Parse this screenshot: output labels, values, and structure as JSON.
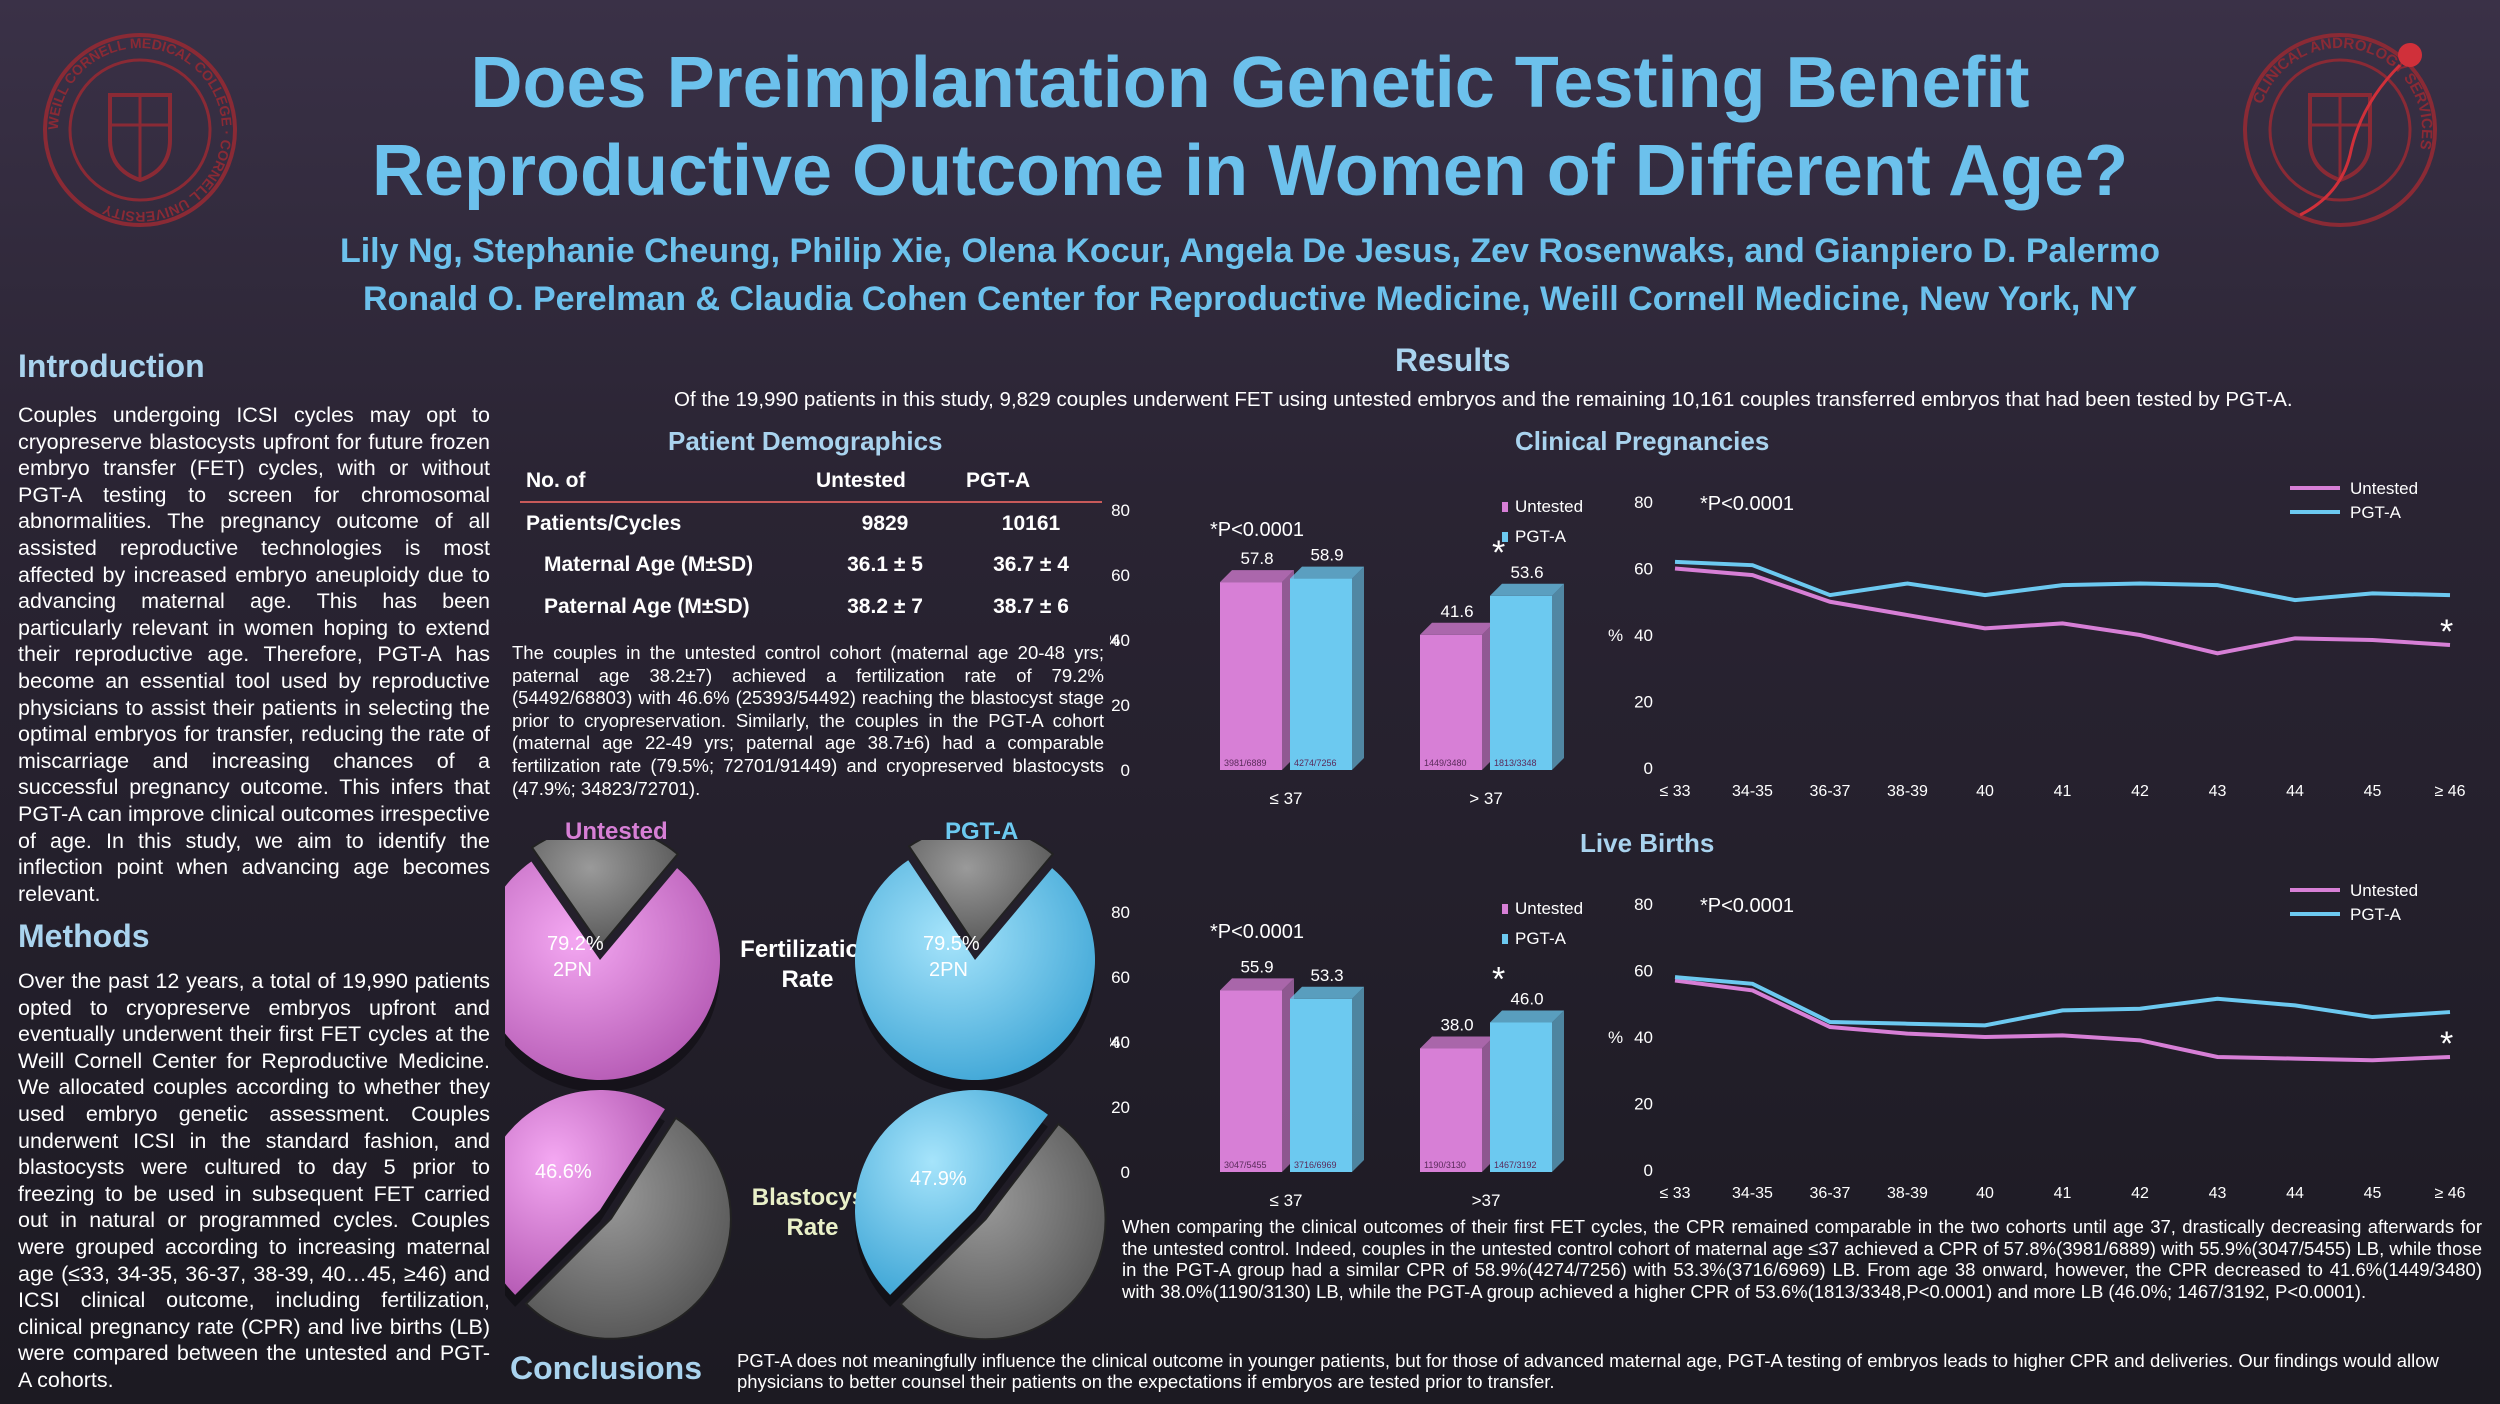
{
  "header": {
    "title_line1": "Does Preimplantation Genetic Testing Benefit",
    "title_line2": "Reproductive Outcome in Women of Different Age?",
    "authors": "Lily Ng, Stephanie Cheung, Philip Xie, Olena Kocur, Angela De Jesus, Zev Rosenwaks, and Gianpiero D. Palermo",
    "affiliation": "Ronald O. Perelman & Claudia Cohen Center for Reproductive Medicine, Weill Cornell Medicine, New York, NY",
    "left_logo_text": "WEILL CORNELL MEDICAL COLLEGE · CORNELL UNIVERSITY",
    "right_logo_text": "CLINICAL ANDROLOGY SERVICES"
  },
  "introduction": {
    "heading": "Introduction",
    "text": "Couples undergoing ICSI cycles may opt to cryopreserve blastocysts upfront for future frozen embryo transfer (FET) cycles, with or without PGT-A testing to screen for chromosomal abnormalities. The pregnancy outcome of all assisted reproductive technologies is most affected by increased embryo aneuploidy due to advancing maternal age. This has been particularly relevant in women hoping to extend their reproductive age. Therefore, PGT-A has become an essential tool used by reproductive physicians to assist their patients in selecting the optimal embryos for transfer, reducing the rate of miscarriage and increasing chances of a successful pregnancy outcome. This infers that PGT-A can improve clinical outcomes irrespective of age. In this study, we aim to identify the inflection point when advancing age becomes relevant."
  },
  "methods": {
    "heading": "Methods",
    "text": "Over the past 12 years, a total of 19,990 patients opted to cryopreserve embryos upfront and eventually underwent their first FET cycles at the Weill Cornell Center for Reproductive Medicine. We allocated couples according to whether they used embryo genetic assessment. Couples underwent ICSI in the standard fashion, and blastocysts were cultured to day 5 prior to freezing to be used in subsequent FET carried out in natural or programmed cycles. Couples were grouped according to increasing maternal age (≤33, 34-35, 36-37, 38-39, 40…45, ≥46) and ICSI clinical outcome, including fertilization, clinical pregnancy rate (CPR) and live births (LB) were compared between the untested and PGT-A cohorts."
  },
  "results": {
    "heading": "Results",
    "intro": "Of the 19,990 patients in this study, 9,829 couples underwent FET using untested embryos and the remaining 10,161 couples transferred embryos that had been tested by PGT-A.",
    "demographics_heading": "Patient Demographics",
    "table": {
      "headers": [
        "No. of",
        "Untested",
        "PGT-A"
      ],
      "rows": [
        [
          "Patients/Cycles",
          "9829",
          "10161"
        ],
        [
          "Maternal Age (M±SD)",
          "36.1 ± 5",
          "36.7 ± 4"
        ],
        [
          "Paternal Age (M±SD)",
          "38.2 ± 7",
          "38.7 ± 6"
        ]
      ]
    },
    "demo_text": "The couples in the untested control cohort (maternal age 20-48 yrs; paternal age 38.2±7) achieved a fertilization rate of 79.2% (54492/68803) with 46.6% (25393/54492) reaching the blastocyst stage prior to cryopreservation. Similarly, the couples in the PGT-A cohort (maternal age 22-49 yrs; paternal age 38.7±6) had a comparable fertilization rate (79.5%; 72701/91449) and cryopreserved blastocysts (47.9%; 34823/72701).",
    "pies": {
      "col_untested": "Untested",
      "col_pgta": "PGT-A",
      "fert_label": "Fertilization Rate",
      "blast_label": "Blastocyst Rate",
      "fert_untested_label": "79.2% 2PN",
      "fert_pgta_label": "79.5% 2PN",
      "blast_untested_label": "46.6%",
      "blast_pgta_label": "47.9%"
    },
    "clinical_heading": "Clinical Pregnancies",
    "live_heading": "Live Births",
    "outcome_text": "When comparing the clinical outcomes of their first FET cycles, the CPR remained comparable in the two cohorts until age 37, drastically decreasing afterwards for the untested control. Indeed, couples in the untested control cohort of maternal age ≤37 achieved a CPR of 57.8%(3981/6889) with 55.9%(3047/5455) LB, while those in the PGT-A group had a similar CPR of 58.9%(4274/7256) with 53.3%(3716/6969) LB. From age 38 onward, however, the CPR decreased to 41.6%(1449/3480) with 38.0%(1190/3130) LB, while the PGT-A group achieved a higher CPR of 53.6%(1813/3348,P<0.0001) and more LB (46.0%; 1467/3192, P<0.0001)."
  },
  "conclusions": {
    "heading": "Conclusions",
    "text": "PGT-A does not meaningfully influence the clinical outcome in younger patients, but for those of advanced maternal age, PGT-A testing of embryos leads to higher CPR and deliveries. Our findings would allow physicians to better counsel their patients on the expectations if embryos are tested prior to transfer."
  },
  "colors": {
    "untested": "#d77fd6",
    "pgta": "#6cc9f0",
    "title": "#6cc1ec",
    "heading": "#a9d3ee"
  },
  "chart_data": [
    {
      "type": "bar",
      "id": "cpr_bar",
      "title": "Clinical Pregnancies",
      "annotation": "*P<0.0001",
      "categories": [
        "≤ 37",
        "> 37"
      ],
      "ylabel": "%",
      "ylim": [
        0,
        80
      ],
      "yticks": [
        "0",
        "20",
        "40",
        "60",
        "80"
      ],
      "series": [
        {
          "name": "Untested",
          "values": [
            57.8,
            41.6
          ],
          "labels": [
            "57.8",
            "41.6"
          ],
          "counts": [
            "3981/6889",
            "1449/3480"
          ]
        },
        {
          "name": "PGT-A",
          "values": [
            58.9,
            53.6
          ],
          "labels": [
            "58.9",
            "53.6"
          ],
          "counts": [
            "4274/7256",
            "1813/3348"
          ]
        }
      ],
      "star": "*"
    },
    {
      "type": "line",
      "id": "cpr_line",
      "title": "Clinical Pregnancies",
      "annotation": "*P<0.0001",
      "categories": [
        "≤ 33",
        "34-35",
        "36-37",
        "38-39",
        "40",
        "41",
        "42",
        "43",
        "44",
        "45",
        "≥ 46"
      ],
      "ylabel": "%",
      "ylim": [
        0,
        80
      ],
      "yticks": [
        "0",
        "20",
        "40",
        "60",
        "80"
      ],
      "series": [
        {
          "name": "Untested",
          "values": [
            60,
            58,
            50,
            46,
            42,
            43.5,
            40,
            34.5,
            39,
            38.5,
            37
          ]
        },
        {
          "name": "PGT-A",
          "values": [
            62,
            61,
            52,
            55.5,
            52,
            55,
            55.5,
            55,
            50.5,
            52.5,
            52
          ]
        }
      ],
      "star": "*"
    },
    {
      "type": "bar",
      "id": "lb_bar",
      "title": "Live Births",
      "annotation": "*P<0.0001",
      "categories": [
        "≤ 37",
        ">37"
      ],
      "ylabel": "%",
      "ylim": [
        0,
        80
      ],
      "yticks": [
        "0",
        "20",
        "40",
        "60",
        "80"
      ],
      "series": [
        {
          "name": "Untested",
          "values": [
            55.9,
            38.0
          ],
          "labels": [
            "55.9",
            "38.0"
          ],
          "counts": [
            "3047/5455",
            "1190/3130"
          ]
        },
        {
          "name": "PGT-A",
          "values": [
            53.3,
            46.0
          ],
          "labels": [
            "53.3",
            "46.0"
          ],
          "counts": [
            "3716/6969",
            "1467/3192"
          ]
        }
      ],
      "star": "*"
    },
    {
      "type": "line",
      "id": "lb_line",
      "title": "Live Births",
      "annotation": "*P<0.0001",
      "categories": [
        "≤ 33",
        "34-35",
        "36-37",
        "38-39",
        "40",
        "41",
        "42",
        "43",
        "44",
        "45",
        "≥ 46"
      ],
      "ylabel": "%",
      "ylim": [
        0,
        80
      ],
      "yticks": [
        "0",
        "20",
        "40",
        "60",
        "80"
      ],
      "series": [
        {
          "name": "Untested",
          "values": [
            57,
            54,
            43,
            41,
            40,
            40.5,
            39,
            34,
            33.5,
            33,
            34
          ]
        },
        {
          "name": "PGT-A",
          "values": [
            58,
            56,
            44.5,
            44,
            43.5,
            48,
            48.5,
            51.5,
            49.5,
            46,
            47.5
          ]
        }
      ],
      "star": "*"
    },
    {
      "type": "pie",
      "id": "pies",
      "slices": [
        {
          "name": "Fertilization Untested",
          "value": 79.2
        },
        {
          "name": "Fertilization PGT-A",
          "value": 79.5
        },
        {
          "name": "Blastocyst Untested",
          "value": 46.6
        },
        {
          "name": "Blastocyst PGT-A",
          "value": 47.9
        }
      ]
    }
  ]
}
